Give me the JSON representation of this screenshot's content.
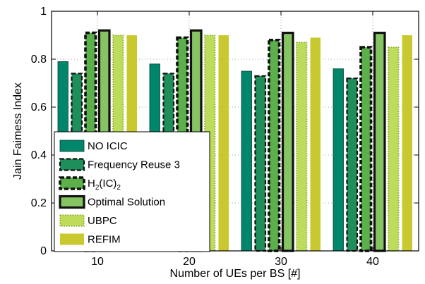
{
  "chart_data": {
    "type": "bar",
    "title": "",
    "xlabel": "Number of UEs per BS [#]",
    "ylabel": "Jain Faimess Index",
    "categories": [
      "10",
      "20",
      "30",
      "40"
    ],
    "ylim": [
      0,
      1
    ],
    "yticks": [
      "0",
      "0.2",
      "0.4",
      "0.6",
      "0.8",
      "1"
    ],
    "grid": true,
    "legend_position": "bottom-left",
    "series": [
      {
        "name": "NO ICIC",
        "values": [
          0.79,
          0.78,
          0.75,
          0.76
        ],
        "color": "#00866b",
        "border": "solid-thin"
      },
      {
        "name": "Frequency Reuse 3",
        "values": [
          0.74,
          0.74,
          0.73,
          0.72
        ],
        "color": "#1e8f5a",
        "border": "dashed"
      },
      {
        "name": "H2(IC)2",
        "values": [
          0.91,
          0.89,
          0.88,
          0.85
        ],
        "color": "#5cb04b",
        "border": "dashed-thick"
      },
      {
        "name": "Optimal Solution",
        "values": [
          0.92,
          0.92,
          0.91,
          0.91
        ],
        "color": "#86c463",
        "border": "solid-thick"
      },
      {
        "name": "UBPC",
        "values": [
          0.9,
          0.9,
          0.87,
          0.85
        ],
        "color": "#bcdc5a",
        "border": "dotted"
      },
      {
        "name": "REFIM",
        "values": [
          0.9,
          0.9,
          0.89,
          0.9
        ],
        "color": "#c9c92f",
        "border": "none"
      }
    ]
  }
}
